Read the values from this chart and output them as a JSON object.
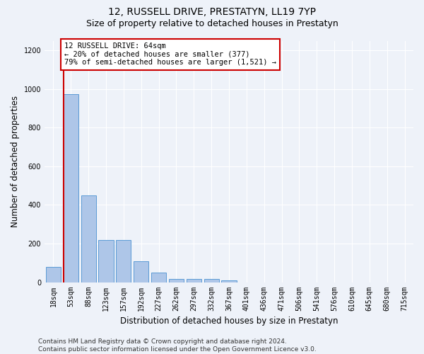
{
  "title": "12, RUSSELL DRIVE, PRESTATYN, LL19 7YP",
  "subtitle": "Size of property relative to detached houses in Prestatyn",
  "xlabel": "Distribution of detached houses by size in Prestatyn",
  "ylabel": "Number of detached properties",
  "bar_labels": [
    "18sqm",
    "53sqm",
    "88sqm",
    "123sqm",
    "157sqm",
    "192sqm",
    "227sqm",
    "262sqm",
    "297sqm",
    "332sqm",
    "367sqm",
    "401sqm",
    "436sqm",
    "471sqm",
    "506sqm",
    "541sqm",
    "576sqm",
    "610sqm",
    "645sqm",
    "680sqm",
    "715sqm"
  ],
  "bar_values": [
    80,
    975,
    450,
    218,
    218,
    110,
    50,
    18,
    18,
    18,
    8,
    0,
    0,
    0,
    0,
    0,
    0,
    0,
    0,
    0,
    0
  ],
  "bar_color": "#aec6e8",
  "bar_edge_color": "#5b9bd5",
  "vline_x": 0.575,
  "vline_color": "#cc0000",
  "annotation_text": "12 RUSSELL DRIVE: 64sqm\n← 20% of detached houses are smaller (377)\n79% of semi-detached houses are larger (1,521) →",
  "annotation_box_color": "white",
  "annotation_box_edge_color": "#cc0000",
  "ylim": [
    0,
    1250
  ],
  "yticks": [
    0,
    200,
    400,
    600,
    800,
    1000,
    1200
  ],
  "footer_text": "Contains HM Land Registry data © Crown copyright and database right 2024.\nContains public sector information licensed under the Open Government Licence v3.0.",
  "bg_color": "#eef2f9",
  "plot_bg_color": "#eef2f9",
  "title_fontsize": 10,
  "subtitle_fontsize": 9,
  "axis_label_fontsize": 8.5,
  "tick_fontsize": 7,
  "footer_fontsize": 6.5,
  "annotation_fontsize": 7.5
}
